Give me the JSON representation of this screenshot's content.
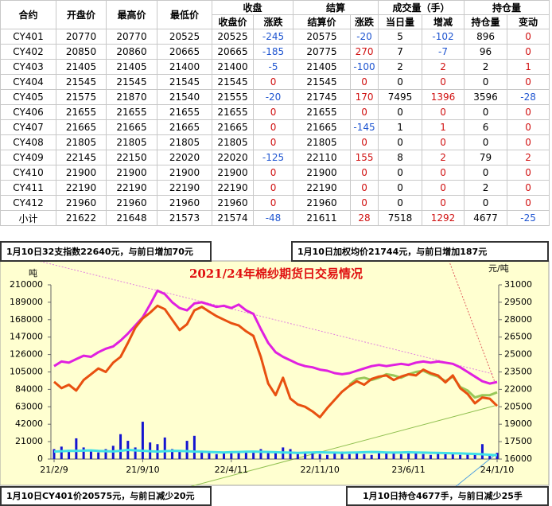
{
  "table": {
    "header_top": [
      "合约",
      "开盘价",
      "最高价",
      "最低价",
      "收盘",
      "结算",
      "成交量（手）",
      "持仓量"
    ],
    "header_sub": [
      "收盘价",
      "涨跌",
      "结算价",
      "涨跌",
      "当日量",
      "增减",
      "持仓量",
      "变动"
    ],
    "rows": [
      [
        "CY401",
        20770,
        20770,
        20525,
        20525,
        -245,
        20575,
        -20,
        5,
        -102,
        896,
        0
      ],
      [
        "CY402",
        20850,
        20860,
        20665,
        20665,
        -185,
        20775,
        270,
        7,
        -7,
        96,
        0
      ],
      [
        "CY403",
        21405,
        21405,
        21400,
        21400,
        -5,
        21405,
        -100,
        2,
        2,
        2,
        1
      ],
      [
        "CY404",
        21545,
        21545,
        21545,
        21545,
        0,
        21545,
        0,
        0,
        0,
        0,
        0
      ],
      [
        "CY405",
        21575,
        21870,
        21540,
        21555,
        -20,
        21745,
        170,
        7495,
        1396,
        3596,
        -28
      ],
      [
        "CY406",
        21655,
        21655,
        21655,
        21655,
        0,
        21655,
        0,
        0,
        0,
        0,
        0
      ],
      [
        "CY407",
        21665,
        21665,
        21665,
        21665,
        0,
        21665,
        -145,
        1,
        1,
        6,
        0
      ],
      [
        "CY408",
        21805,
        21805,
        21805,
        21805,
        0,
        21805,
        0,
        0,
        0,
        0,
        0
      ],
      [
        "CY409",
        22145,
        22150,
        22020,
        22020,
        -125,
        22110,
        155,
        8,
        2,
        79,
        2
      ],
      [
        "CY410",
        21900,
        21900,
        21900,
        21900,
        0,
        21900,
        0,
        0,
        0,
        0,
        0
      ],
      [
        "CY411",
        22190,
        22190,
        22190,
        22190,
        0,
        22190,
        0,
        0,
        0,
        2,
        0
      ],
      [
        "CY412",
        21960,
        21960,
        21960,
        21960,
        0,
        21960,
        0,
        0,
        0,
        0,
        0
      ],
      [
        "小计",
        21622,
        21648,
        21573,
        21574,
        -48,
        21611,
        28,
        7518,
        1292,
        4677,
        -25
      ]
    ]
  },
  "annotations": [
    "1月10日32支指数22640元，与前日增加70元",
    "1月10日加权均价21744元，与前日增加187元",
    "1月10日CY401价20575元，与前日减少20元",
    "1月10日持仓4677手，与前日减少25手"
  ],
  "chart_data": {
    "type": "combo",
    "title": "2021/24年棉纱期货日交易情况",
    "y_label": "吨",
    "y2_label": "元/吨",
    "categories": [
      "21/2/9",
      null,
      null,
      null,
      null,
      null,
      null,
      null,
      null,
      null,
      null,
      null,
      "21/9/10",
      null,
      null,
      null,
      null,
      null,
      null,
      null,
      null,
      null,
      null,
      null,
      "22/4/11",
      null,
      null,
      null,
      null,
      null,
      null,
      null,
      null,
      null,
      null,
      null,
      "22/11/10",
      null,
      null,
      null,
      null,
      null,
      null,
      null,
      null,
      null,
      null,
      null,
      "23/6/11",
      null,
      null,
      null,
      null,
      null,
      null,
      null,
      null,
      null,
      null,
      null,
      "24/1/10"
    ],
    "ylim": [
      0,
      210000
    ],
    "yticks": [
      0,
      21000,
      42000,
      63000,
      84000,
      105000,
      126000,
      147000,
      168000,
      189000,
      210000
    ],
    "y2lim": [
      16000,
      31000
    ],
    "y2ticks": [
      16000,
      17500,
      19000,
      20500,
      22000,
      23500,
      25000,
      26500,
      28000,
      29500,
      31000
    ],
    "series": [
      {
        "type": "bar",
        "axis": "y",
        "color": "#1414d0",
        "values": [
          12000,
          15000,
          9000,
          25000,
          14000,
          10000,
          8000,
          12000,
          16000,
          30000,
          22000,
          14000,
          45000,
          20000,
          18000,
          26000,
          12000,
          10000,
          22000,
          28000,
          10000,
          8000,
          6000,
          9000,
          7000,
          8000,
          9000,
          10000,
          12000,
          8000,
          9000,
          14000,
          12000,
          6000,
          7000,
          8000,
          6000,
          5000,
          7000,
          9000,
          6000,
          7000,
          6000,
          5000,
          7000,
          8000,
          7000,
          6000,
          9000,
          7000,
          6000,
          5000,
          8000,
          6000,
          7000,
          5000,
          6000,
          5000,
          18000,
          6000,
          7518
        ]
      },
      {
        "type": "line",
        "axis": "y",
        "color": "#40e0e8",
        "values": [
          9000,
          9500,
          10000,
          9800,
          10200,
          10500,
          9800,
          9500,
          9200,
          10000,
          11000,
          10500,
          10000,
          9500,
          9000,
          9500,
          10000,
          9800,
          9500,
          9000,
          8800,
          8500,
          8200,
          8000,
          8300,
          8500,
          8800,
          9000,
          8700,
          8500,
          8200,
          8000,
          7800,
          7500,
          7800,
          8000,
          8200,
          8000,
          7800,
          7600,
          7800,
          8000,
          8200,
          8500,
          8300,
          8000,
          7800,
          8000,
          8200,
          8000,
          7800,
          7600,
          7400,
          7200,
          7000,
          6800,
          6500,
          6200,
          5800,
          5200,
          4677
        ]
      },
      {
        "type": "line",
        "axis": "y2",
        "color": "#e020e0",
        "values": [
          24000,
          24400,
          24300,
          24600,
          24900,
          24800,
          25200,
          25500,
          25700,
          26200,
          26800,
          27500,
          28200,
          29300,
          30500,
          30200,
          29500,
          29000,
          28800,
          29400,
          29500,
          29300,
          29100,
          29200,
          29000,
          29300,
          28800,
          28500,
          27200,
          26000,
          25200,
          24800,
          24500,
          24200,
          24000,
          23900,
          23700,
          23600,
          23400,
          23300,
          23400,
          23600,
          23800,
          24000,
          24100,
          24000,
          24100,
          24200,
          24100,
          24300,
          24400,
          24300,
          24400,
          24300,
          24200,
          23900,
          23500,
          23100,
          22700,
          22500,
          22640
        ]
      },
      {
        "type": "line",
        "axis": "y2",
        "color": "#98c858",
        "values": [
          null,
          null,
          null,
          null,
          null,
          null,
          null,
          null,
          null,
          null,
          null,
          null,
          null,
          null,
          null,
          null,
          null,
          null,
          null,
          null,
          null,
          null,
          null,
          null,
          null,
          null,
          null,
          null,
          null,
          null,
          null,
          null,
          null,
          null,
          null,
          null,
          null,
          null,
          null,
          null,
          22400,
          22900,
          23000,
          22800,
          23000,
          23300,
          23200,
          23000,
          23300,
          23500,
          23600,
          23300,
          23100,
          22700,
          23100,
          22200,
          21900,
          21300,
          21500,
          21500,
          21744
        ]
      },
      {
        "type": "line",
        "axis": "y2",
        "color": "#e85010",
        "values": [
          22650,
          22100,
          22400,
          21900,
          22800,
          23300,
          23800,
          23500,
          24300,
          24800,
          26000,
          27300,
          28100,
          28600,
          29200,
          28900,
          28000,
          27100,
          27600,
          28800,
          29100,
          28700,
          28300,
          28000,
          27700,
          27500,
          27000,
          26600,
          24800,
          22500,
          21500,
          23000,
          21200,
          20700,
          20500,
          20100,
          19600,
          20400,
          21100,
          21800,
          22300,
          22700,
          22400,
          22900,
          23100,
          23200,
          22800,
          23100,
          23300,
          23200,
          23700,
          23400,
          23200,
          22600,
          23200,
          22100,
          21600,
          20800,
          21300,
          21200,
          20575
        ]
      }
    ]
  }
}
